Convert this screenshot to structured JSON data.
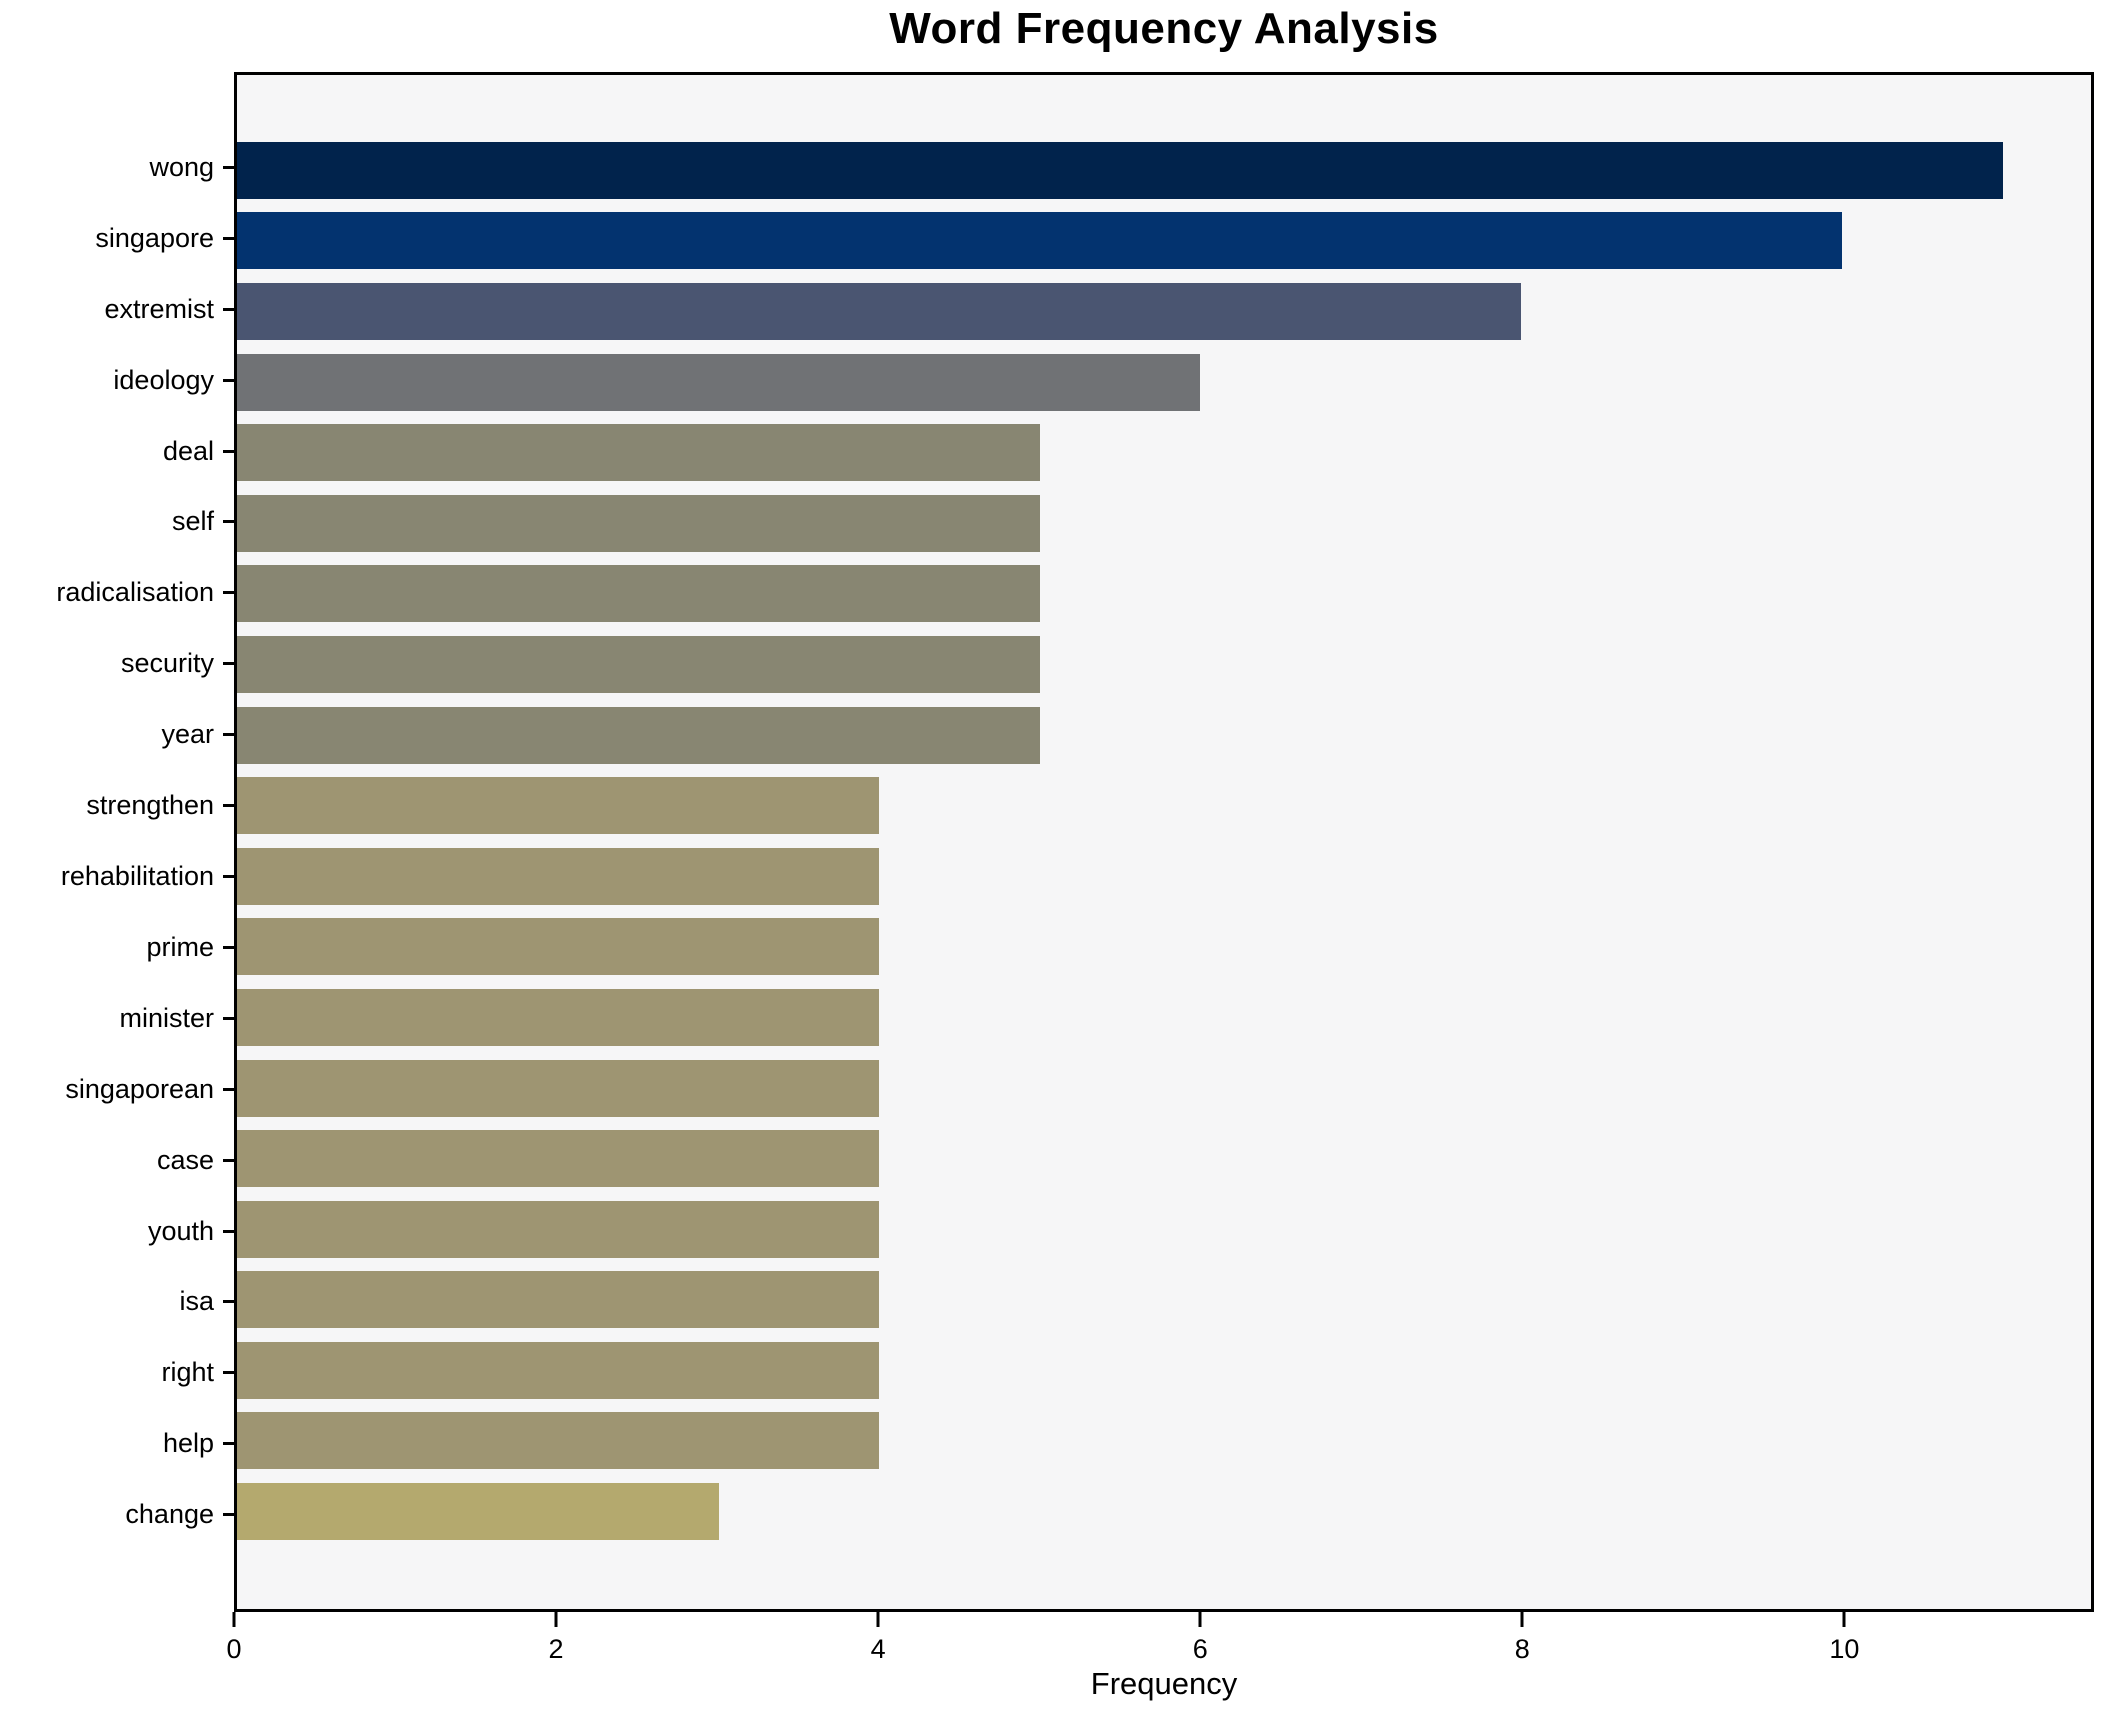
{
  "title": "Word Frequency Analysis",
  "axes": {
    "xlabel": "Frequency"
  },
  "colors": {
    "figure_background": "#ffffff",
    "plot_background": "#f6f6f7",
    "axis_line": "#000000",
    "text": "#000000"
  },
  "chart_data": {
    "type": "bar",
    "orientation": "horizontal",
    "title": "Word Frequency Analysis",
    "xlabel": "Frequency",
    "ylabel": "",
    "categories": [
      "wong",
      "singapore",
      "extremist",
      "ideology",
      "deal",
      "self",
      "radicalisation",
      "security",
      "year",
      "strengthen",
      "rehabilitation",
      "prime",
      "minister",
      "singaporean",
      "case",
      "youth",
      "isa",
      "right",
      "help",
      "change"
    ],
    "values": [
      11,
      10,
      8,
      6,
      5,
      5,
      5,
      5,
      5,
      4,
      4,
      4,
      4,
      4,
      4,
      4,
      4,
      4,
      4,
      3
    ],
    "bar_colors": [
      "#01234c",
      "#03336f",
      "#4a5571",
      "#707275",
      "#888672",
      "#888672",
      "#888672",
      "#888672",
      "#888672",
      "#9e9572",
      "#9e9572",
      "#9e9572",
      "#9e9572",
      "#9e9572",
      "#9e9572",
      "#9e9572",
      "#9e9572",
      "#9e9572",
      "#9e9572",
      "#b4a96e"
    ],
    "xlim": [
      0,
      11.55
    ],
    "xticks": [
      0,
      2,
      4,
      6,
      8,
      10
    ],
    "grid": false,
    "legend": null
  }
}
